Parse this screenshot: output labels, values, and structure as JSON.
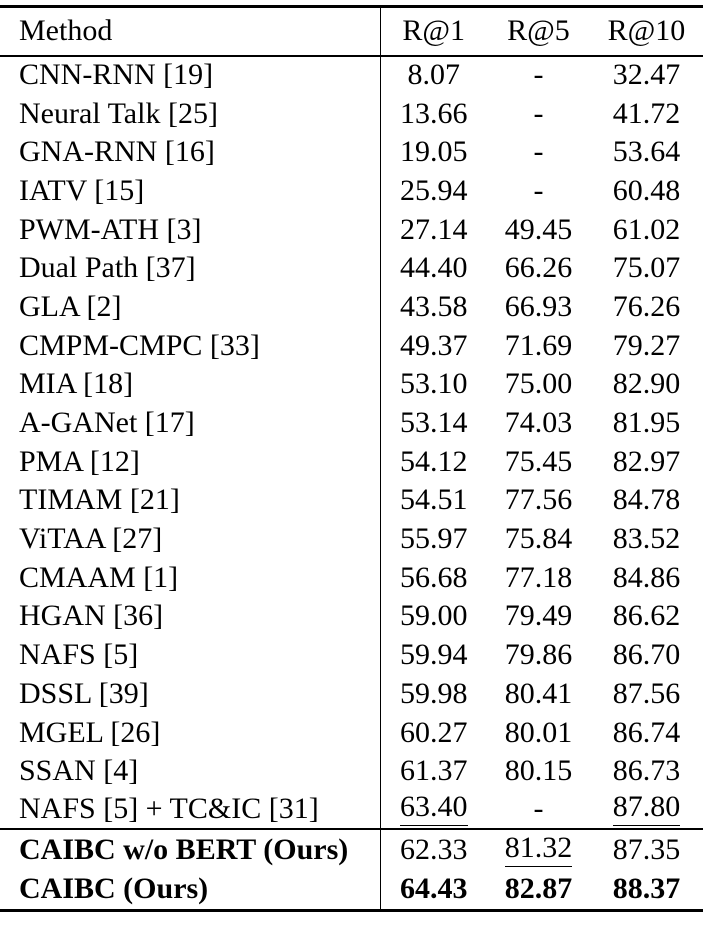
{
  "colors": {
    "text": "#000000",
    "background": "#ffffff",
    "rule": "#000000"
  },
  "table": {
    "header": {
      "method": "Method",
      "metrics": [
        "R@1",
        "R@5",
        "R@10"
      ]
    },
    "sections": [
      {
        "name": "baselines",
        "rows": [
          {
            "method": "CNN-RNN [19]",
            "cells": [
              {
                "text": "8.07"
              },
              {
                "text": "-"
              },
              {
                "text": "32.47"
              }
            ]
          },
          {
            "method": "Neural Talk [25]",
            "cells": [
              {
                "text": "13.66"
              },
              {
                "text": "-"
              },
              {
                "text": "41.72"
              }
            ]
          },
          {
            "method": "GNA-RNN [16]",
            "cells": [
              {
                "text": "19.05"
              },
              {
                "text": "-"
              },
              {
                "text": "53.64"
              }
            ]
          },
          {
            "method": "IATV [15]",
            "cells": [
              {
                "text": "25.94"
              },
              {
                "text": "-"
              },
              {
                "text": "60.48"
              }
            ]
          },
          {
            "method": "PWM-ATH [3]",
            "cells": [
              {
                "text": "27.14"
              },
              {
                "text": "49.45"
              },
              {
                "text": "61.02"
              }
            ]
          },
          {
            "method": "Dual Path [37]",
            "cells": [
              {
                "text": "44.40"
              },
              {
                "text": "66.26"
              },
              {
                "text": "75.07"
              }
            ]
          },
          {
            "method": "GLA [2]",
            "cells": [
              {
                "text": "43.58"
              },
              {
                "text": "66.93"
              },
              {
                "text": "76.26"
              }
            ]
          },
          {
            "method": "CMPM-CMPC [33]",
            "cells": [
              {
                "text": "49.37"
              },
              {
                "text": "71.69"
              },
              {
                "text": "79.27"
              }
            ]
          },
          {
            "method": "MIA [18]",
            "cells": [
              {
                "text": "53.10"
              },
              {
                "text": "75.00"
              },
              {
                "text": "82.90"
              }
            ]
          },
          {
            "method": "A-GANet [17]",
            "cells": [
              {
                "text": "53.14"
              },
              {
                "text": "74.03"
              },
              {
                "text": "81.95"
              }
            ]
          },
          {
            "method": "PMA [12]",
            "cells": [
              {
                "text": "54.12"
              },
              {
                "text": "75.45"
              },
              {
                "text": "82.97"
              }
            ]
          },
          {
            "method": "TIMAM [21]",
            "cells": [
              {
                "text": "54.51"
              },
              {
                "text": "77.56"
              },
              {
                "text": "84.78"
              }
            ]
          },
          {
            "method": "ViTAA [27]",
            "cells": [
              {
                "text": "55.97"
              },
              {
                "text": "75.84"
              },
              {
                "text": "83.52"
              }
            ]
          },
          {
            "method": "CMAAM [1]",
            "cells": [
              {
                "text": "56.68"
              },
              {
                "text": "77.18"
              },
              {
                "text": "84.86"
              }
            ]
          },
          {
            "method": "HGAN [36]",
            "cells": [
              {
                "text": "59.00"
              },
              {
                "text": "79.49"
              },
              {
                "text": "86.62"
              }
            ]
          },
          {
            "method": "NAFS [5]",
            "cells": [
              {
                "text": "59.94"
              },
              {
                "text": "79.86"
              },
              {
                "text": "86.70"
              }
            ]
          },
          {
            "method": "DSSL [39]",
            "cells": [
              {
                "text": "59.98"
              },
              {
                "text": "80.41"
              },
              {
                "text": "87.56"
              }
            ]
          },
          {
            "method": "MGEL [26]",
            "cells": [
              {
                "text": "60.27"
              },
              {
                "text": "80.01"
              },
              {
                "text": "86.74"
              }
            ]
          },
          {
            "method": "SSAN [4]",
            "cells": [
              {
                "text": "61.37"
              },
              {
                "text": "80.15"
              },
              {
                "text": "86.73"
              }
            ]
          },
          {
            "method": "NAFS [5] + TC&IC [31]",
            "cells": [
              {
                "text": "63.40",
                "underline": true
              },
              {
                "text": "-"
              },
              {
                "text": "87.80",
                "underline": true
              }
            ]
          }
        ]
      },
      {
        "name": "ours",
        "rows": [
          {
            "method": "CAIBC w/o BERT (Ours)",
            "method_bold": true,
            "cells": [
              {
                "text": "62.33"
              },
              {
                "text": "81.32",
                "underline": true
              },
              {
                "text": "87.35"
              }
            ]
          },
          {
            "method": "CAIBC (Ours)",
            "method_bold": true,
            "cells": [
              {
                "text": "64.43",
                "bold": true
              },
              {
                "text": "82.87",
                "bold": true
              },
              {
                "text": "88.37",
                "bold": true
              }
            ]
          }
        ]
      }
    ]
  }
}
